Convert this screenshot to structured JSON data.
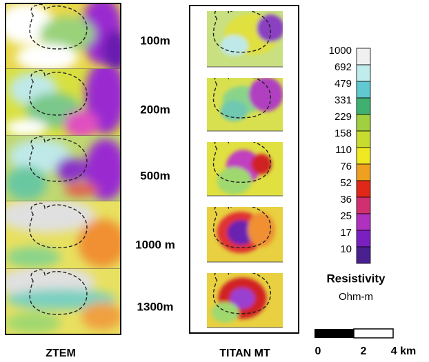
{
  "columns": {
    "left": "ZTEM",
    "right": "TITAN MT"
  },
  "depths": [
    "100m",
    "200m",
    "500m",
    "1000 m",
    "1300m"
  ],
  "colorbar": {
    "labels": [
      "1000",
      "692",
      "479",
      "331",
      "229",
      "158",
      "110",
      "76",
      "52",
      "36",
      "25",
      "17",
      "10"
    ],
    "title": "Resistivity",
    "unit": "Ohm-m"
  },
  "scale_bar": {
    "labels": [
      "0",
      "2",
      "4 km"
    ]
  }
}
